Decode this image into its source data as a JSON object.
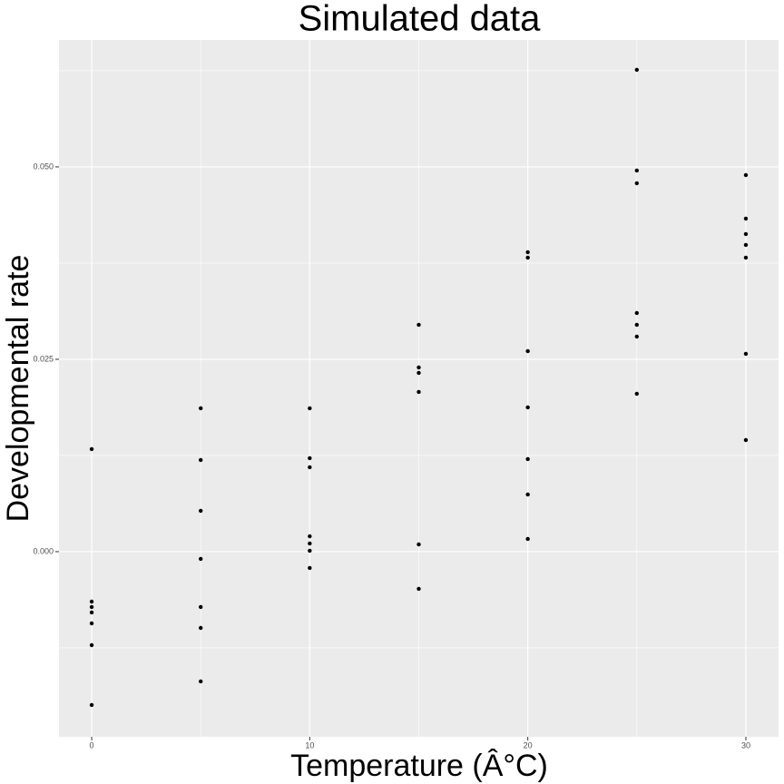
{
  "chart_data": {
    "type": "scatter",
    "title": "Simulated data",
    "x_label": "Temperature (Â°C)",
    "y_label": "Developmental rate",
    "color": "#000000",
    "grid": true,
    "background": "#ebebeb",
    "xlim": [
      -1.5,
      31.5
    ],
    "ylim": [
      -0.02406,
      0.0665
    ],
    "xticks": [
      0,
      10,
      20,
      30
    ],
    "yticks": [
      {
        "value": 0,
        "label": "0.000"
      },
      0.025,
      {
        "value": 0.05,
        "label": "0.050"
      }
    ],
    "x_minor_ticks": [
      5,
      15,
      25
    ],
    "y_minor_ticks": [
      -0.0125,
      0.0125,
      0.0375,
      0.0625
    ],
    "x": [
      0,
      0,
      0,
      0,
      0,
      0,
      0,
      5,
      5,
      5,
      5,
      5,
      5,
      5,
      10,
      10,
      10,
      10,
      10,
      10,
      10,
      15,
      15,
      15,
      15,
      15,
      15,
      20,
      20,
      20,
      20,
      20,
      20,
      20,
      25,
      25,
      25,
      25,
      25,
      25,
      25,
      30,
      30,
      30,
      30,
      30,
      30,
      30
    ],
    "y": [
      0.01333,
      -0.00649,
      -0.00719,
      -0.0079,
      -0.00932,
      -0.01215,
      -0.01993,
      0.01863,
      0.01191,
      0.00531,
      -0.00094,
      -0.00719,
      -0.00991,
      -0.01686,
      0.01863,
      0.01215,
      0.01097,
      0.002,
      0.00106,
      0.00012,
      -0.00212,
      0.02948,
      0.02394,
      0.02323,
      0.02075,
      0.00094,
      -0.00483,
      0.03892,
      0.03821,
      0.02606,
      0.01875,
      0.01203,
      0.00743,
      0.00165,
      0.06262,
      0.04953,
      0.04788,
      0.03101,
      0.02948,
      0.02795,
      0.02052,
      0.04894,
      0.04328,
      0.04127,
      0.03986,
      0.03821,
      0.02571,
      0.0145
    ]
  }
}
